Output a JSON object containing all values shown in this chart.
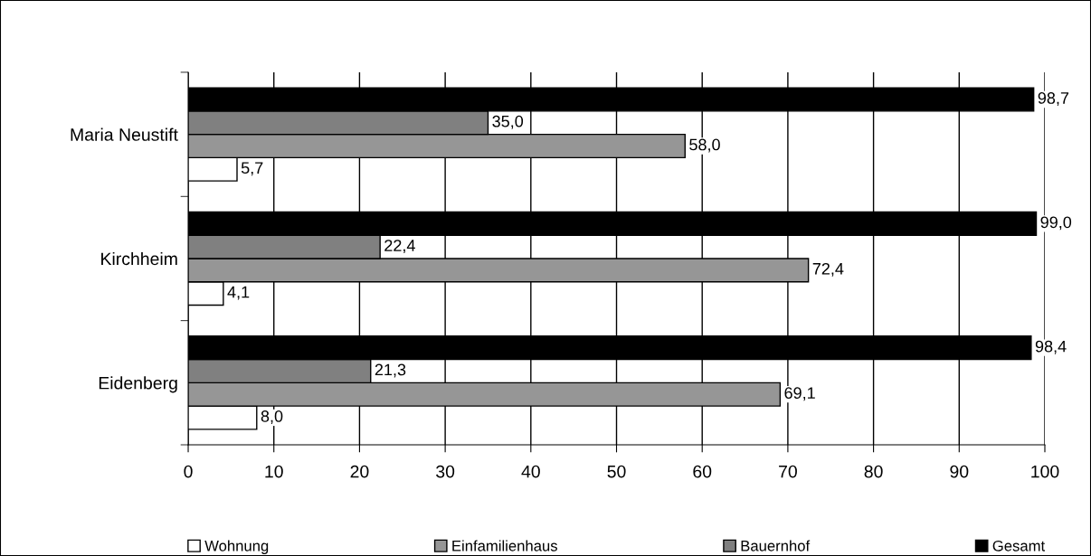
{
  "chart_data": {
    "type": "bar",
    "orientation": "horizontal",
    "categories": [
      "Maria Neustift",
      "Kirchheim",
      "Eidenberg"
    ],
    "series": [
      {
        "name": "Wohnung",
        "color": "#ffffff",
        "values": [
          5.7,
          4.1,
          8.0
        ],
        "value_labels": [
          "5,7",
          "4,1",
          "8,0"
        ]
      },
      {
        "name": "Einfamilienhaus",
        "color": "#969696",
        "values": [
          58.0,
          72.4,
          69.1
        ],
        "value_labels": [
          "58,0",
          "72,4",
          "69,1"
        ]
      },
      {
        "name": "Bauernhof",
        "color": "#808080",
        "values": [
          35.0,
          22.4,
          21.3
        ],
        "value_labels": [
          "35,0",
          "22,4",
          "21,3"
        ]
      },
      {
        "name": "Gesamt",
        "color": "#000000",
        "values": [
          98.7,
          99.0,
          98.4
        ],
        "value_labels": [
          "98,7",
          "99,0",
          "98,4"
        ]
      }
    ],
    "xlim": [
      0,
      100
    ],
    "xticks": [
      0,
      10,
      20,
      30,
      40,
      50,
      60,
      70,
      80,
      90,
      100
    ],
    "grid": "x",
    "legend": "bottom"
  }
}
